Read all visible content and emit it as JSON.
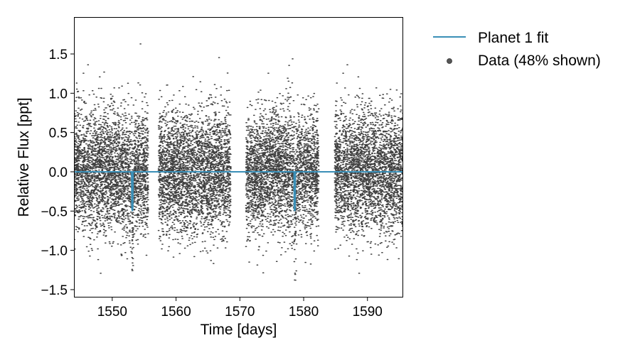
{
  "chart_data": {
    "type": "scatter",
    "title": "",
    "xlabel": "Time [days]",
    "ylabel": "Relative Flux [ppt]",
    "xlim": [
      1544.0,
      1595.6
    ],
    "ylim": [
      -1.6,
      1.97
    ],
    "xticks": [
      1550,
      1560,
      1570,
      1580,
      1590
    ],
    "xtick_labels": [
      "1550",
      "1560",
      "1570",
      "1580",
      "1590"
    ],
    "yticks": [
      -1.5,
      -1.0,
      -0.5,
      0.0,
      0.5,
      1.0,
      1.5
    ],
    "ytick_labels": [
      "−1.5",
      "−1.0",
      "−0.5",
      "0.0",
      "0.5",
      "1.0",
      "1.5"
    ],
    "grid": false,
    "legend_position": "outside-right",
    "legend": [
      {
        "label": "Planet 1 fit",
        "kind": "line",
        "color": "#3a8fb7"
      },
      {
        "label": "Data (48% shown)",
        "kind": "point",
        "color": "#555555"
      }
    ],
    "series": [
      {
        "name": "Data (48% shown)",
        "kind": "scatter",
        "color": "#000000",
        "observing_segments": [
          [
            1544.0,
            1555.6
          ],
          [
            1557.2,
            1568.5
          ],
          [
            1570.9,
            1582.3
          ],
          [
            1584.8,
            1595.6
          ]
        ],
        "baseline_flux": 0.0,
        "scatter_std_ppt": 0.38,
        "approx_points_shown": 13000
      },
      {
        "name": "Planet 1 fit",
        "kind": "line",
        "color": "#3a8fb7",
        "baseline_flux": 0.0,
        "transit_times": [
          1553.15,
          1578.6
        ],
        "transit_depth_ppt": -0.5,
        "transit_duration_days": 0.22,
        "x": [
          1544.0,
          1553.04,
          1553.08,
          1553.15,
          1553.22,
          1553.26,
          1578.49,
          1578.53,
          1578.6,
          1578.67,
          1578.71,
          1595.6
        ],
        "y": [
          0.0,
          0.0,
          -0.47,
          -0.5,
          -0.47,
          0.0,
          0.0,
          -0.47,
          -0.5,
          -0.47,
          0.0,
          0.0
        ]
      }
    ],
    "colors": {
      "fit_line": "#3a8fb7",
      "data_points": "#000000",
      "legend_marker": "#555555"
    }
  }
}
